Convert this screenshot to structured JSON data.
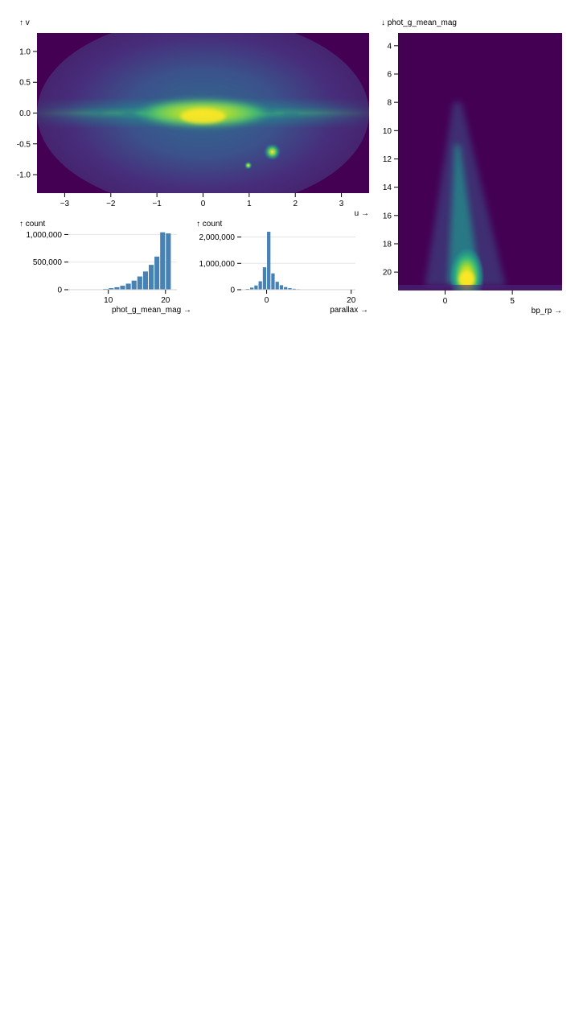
{
  "chart_data": [
    {
      "type": "heatmap",
      "x_label": "u →",
      "y_label": "↑ v",
      "xlim": [
        -3.6,
        3.6
      ],
      "ylim": [
        -1.3,
        1.3
      ],
      "x_ticks": [
        -3,
        -2,
        -1,
        0,
        1,
        2,
        3
      ],
      "x_tick_labels": [
        "−3",
        "−2",
        "−1",
        "0",
        "1",
        "2",
        "3"
      ],
      "y_ticks": [
        1.0,
        0.5,
        0.0,
        -0.5,
        -1.0
      ],
      "y_tick_labels": [
        "1.0",
        "0.5",
        "0.0",
        "-0.5",
        "-1.0"
      ],
      "colormap": "viridis",
      "background_color": "#440154",
      "features": [
        {
          "kind": "galactic-disk",
          "u": [
            -3.6,
            3.6
          ],
          "v": [
            -0.25,
            0.25
          ]
        },
        {
          "kind": "galactic-bulge",
          "u": 0.0,
          "v": 0.0
        },
        {
          "kind": "dense-cluster",
          "u": 1.5,
          "v": -0.63
        },
        {
          "kind": "dense-cluster",
          "u": 0.98,
          "v": -0.85
        }
      ]
    },
    {
      "type": "heatmap",
      "x_label": "bp_rp →",
      "y_label": "↓ phot_g_mean_mag",
      "xlim": [
        -3.5,
        8.7
      ],
      "ylim": [
        21.3,
        3.1
      ],
      "y_reversed": true,
      "x_ticks": [
        0,
        5
      ],
      "x_tick_labels": [
        "0",
        "5"
      ],
      "y_ticks": [
        4,
        6,
        8,
        10,
        12,
        14,
        16,
        18,
        20
      ],
      "y_tick_labels": [
        "4",
        "6",
        "8",
        "10",
        "12",
        "14",
        "16",
        "18",
        "20"
      ],
      "colormap": "viridis",
      "background_color": "#440154",
      "peak": {
        "bp_rp": 1.6,
        "phot_g_mean_mag": 20.3
      }
    },
    {
      "type": "bar",
      "x_label": "phot_g_mean_mag →",
      "y_label": "↑ count",
      "xlim": [
        3,
        22
      ],
      "ylim": [
        0,
        1050000
      ],
      "x_ticks": [
        10,
        20
      ],
      "x_tick_labels": [
        "10",
        "20"
      ],
      "y_ticks": [
        0,
        500000,
        1000000
      ],
      "y_tick_labels": [
        "0",
        "500,000",
        "1,000,000"
      ],
      "bins": [
        {
          "x0": 8,
          "x1": 9,
          "value": 4000
        },
        {
          "x0": 9,
          "x1": 10,
          "value": 14000
        },
        {
          "x0": 10,
          "x1": 11,
          "value": 28000
        },
        {
          "x0": 11,
          "x1": 12,
          "value": 45000
        },
        {
          "x0": 12,
          "x1": 13,
          "value": 72000
        },
        {
          "x0": 13,
          "x1": 14,
          "value": 110000
        },
        {
          "x0": 14,
          "x1": 15,
          "value": 165000
        },
        {
          "x0": 15,
          "x1": 16,
          "value": 240000
        },
        {
          "x0": 16,
          "x1": 17,
          "value": 330000
        },
        {
          "x0": 17,
          "x1": 18,
          "value": 450000
        },
        {
          "x0": 18,
          "x1": 19,
          "value": 600000
        },
        {
          "x0": 19,
          "x1": 20,
          "value": 1040000
        },
        {
          "x0": 20,
          "x1": 21,
          "value": 1020000
        }
      ],
      "bar_color": "#4682b4"
    },
    {
      "type": "bar",
      "x_label": "parallax →",
      "y_label": "↑ count",
      "xlim": [
        -6,
        21
      ],
      "ylim": [
        0,
        2200000
      ],
      "x_ticks": [
        0,
        20
      ],
      "x_tick_labels": [
        "0",
        "20"
      ],
      "y_ticks": [
        0,
        1000000,
        2000000
      ],
      "y_tick_labels": [
        "0",
        "1,000,000",
        "2,000,000"
      ],
      "bins": [
        {
          "x0": -5,
          "x1": -4,
          "value": 30000
        },
        {
          "x0": -4,
          "x1": -3,
          "value": 80000
        },
        {
          "x0": -3,
          "x1": -2,
          "value": 160000
        },
        {
          "x0": -2,
          "x1": -1,
          "value": 320000
        },
        {
          "x0": -1,
          "x1": 0,
          "value": 850000
        },
        {
          "x0": 0,
          "x1": 1,
          "value": 2200000
        },
        {
          "x0": 1,
          "x1": 2,
          "value": 620000
        },
        {
          "x0": 2,
          "x1": 3,
          "value": 300000
        },
        {
          "x0": 3,
          "x1": 4,
          "value": 170000
        },
        {
          "x0": 4,
          "x1": 5,
          "value": 100000
        },
        {
          "x0": 5,
          "x1": 6,
          "value": 60000
        },
        {
          "x0": 6,
          "x1": 7,
          "value": 35000
        },
        {
          "x0": 7,
          "x1": 8,
          "value": 20000
        },
        {
          "x0": 8,
          "x1": 9,
          "value": 10000
        },
        {
          "x0": 9,
          "x1": 10,
          "value": 5000
        }
      ],
      "bar_color": "#4682b4"
    }
  ]
}
